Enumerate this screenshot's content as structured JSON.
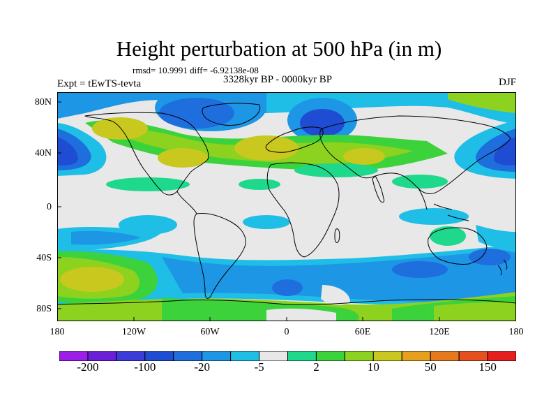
{
  "title": "Height perturbation at 500 hPa (in m)",
  "stats": "rmsd= 10.9991 diff= -6.92138e-08",
  "period": "3328kyr BP - 0000kyr BP",
  "experiment": "Expt = tEwTS-tevta",
  "season": "DJF",
  "map": {
    "lat_range": [
      -90,
      90
    ],
    "lon_range": [
      -180,
      180
    ],
    "lat_ticks": [
      {
        "value": 80,
        "label": "80N"
      },
      {
        "value": 40,
        "label": "40N"
      },
      {
        "value": 0,
        "label": "0"
      },
      {
        "value": -40,
        "label": "40S"
      },
      {
        "value": -80,
        "label": "80S"
      }
    ],
    "lon_ticks": [
      {
        "value": -180,
        "label": "180"
      },
      {
        "value": -120,
        "label": "120W"
      },
      {
        "value": -60,
        "label": "60W"
      },
      {
        "value": 0,
        "label": "0"
      },
      {
        "value": 60,
        "label": "60E"
      },
      {
        "value": 120,
        "label": "120E"
      },
      {
        "value": 180,
        "label": "180"
      }
    ]
  },
  "colorbar": {
    "colors": [
      "#9B1FE8",
      "#6A1FD8",
      "#3C3CD8",
      "#1E4CD2",
      "#1E6EDE",
      "#1E96E6",
      "#1EBEE6",
      "#E8E8E8",
      "#1ED88C",
      "#3CD23C",
      "#8CD21E",
      "#C8C81E",
      "#E6A01E",
      "#E6781E",
      "#E6501E",
      "#E61E1E"
    ],
    "labels": [
      {
        "after_box": 1,
        "text": "-200"
      },
      {
        "after_box": 3,
        "text": "-100"
      },
      {
        "after_box": 5,
        "text": "-20"
      },
      {
        "after_box": 7,
        "text": "-5"
      },
      {
        "after_box": 9,
        "text": "2"
      },
      {
        "after_box": 11,
        "text": "10"
      },
      {
        "after_box": 13,
        "text": "50"
      },
      {
        "after_box": 15,
        "text": "150"
      }
    ]
  }
}
